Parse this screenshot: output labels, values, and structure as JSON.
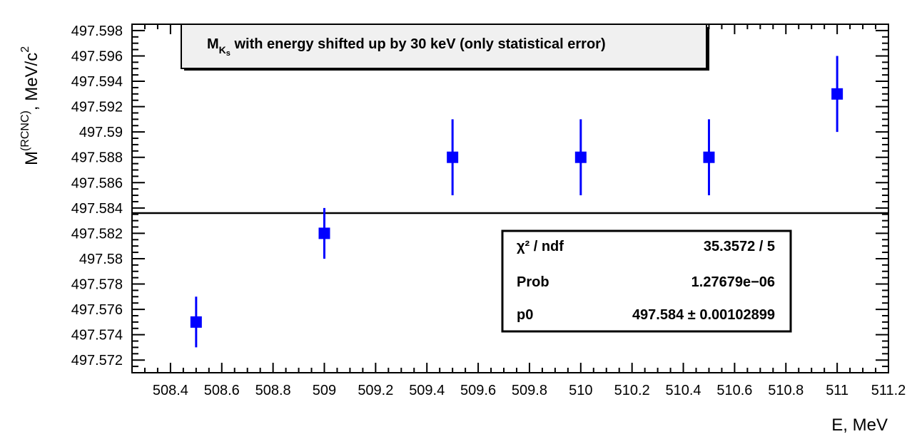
{
  "chart_data": {
    "type": "scatter",
    "title": "M",
    "title_sub": "K",
    "title_subsub": "s",
    "title_rest": " with energy shifted up by 30 keV (only statistical error)",
    "xlabel": "E, MeV",
    "ylabel_main": "M",
    "ylabel_sup": "(RCNC)",
    "ylabel_rest": ", MeV/c",
    "ylabel_sup2": "2",
    "xlim": [
      508.25,
      511.2
    ],
    "ylim": [
      497.571,
      497.5985
    ],
    "xticks": [
      "508.4",
      "508.6",
      "508.8",
      "509",
      "509.2",
      "509.4",
      "509.6",
      "509.8",
      "510",
      "510.2",
      "510.4",
      "510.6",
      "510.8",
      "511",
      "511.2"
    ],
    "yticks": [
      "497.572",
      "497.574",
      "497.576",
      "497.578",
      "497.58",
      "497.582",
      "497.584",
      "497.586",
      "497.588",
      "497.59",
      "497.592",
      "497.594",
      "497.596",
      "497.598"
    ],
    "series": [
      {
        "color": "#0000ff",
        "points": [
          {
            "x": 508.5,
            "y": 497.575,
            "err": 0.002
          },
          {
            "x": 509.0,
            "y": 497.582,
            "err": 0.002
          },
          {
            "x": 509.5,
            "y": 497.588,
            "err": 0.003
          },
          {
            "x": 510.0,
            "y": 497.588,
            "err": 0.003
          },
          {
            "x": 510.5,
            "y": 497.588,
            "err": 0.003
          },
          {
            "x": 511.0,
            "y": 497.593,
            "err": 0.003
          }
        ]
      }
    ],
    "fit_line": {
      "y": 497.5836,
      "color": "#000000"
    },
    "stats": [
      {
        "name": "χ² / ndf",
        "value": "35.3572 / 5"
      },
      {
        "name": "Prob",
        "value": "1.27679e−06"
      },
      {
        "name": "p0",
        "value": "497.584 ± 0.00102899"
      }
    ]
  }
}
